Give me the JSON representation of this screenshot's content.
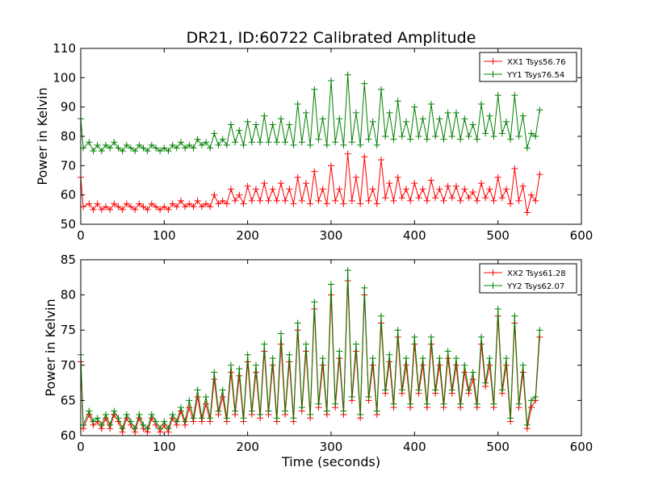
{
  "figure_title": "DR21, ID:60722 Calibrated Amplitude",
  "colors": {
    "xx": "#ff0000",
    "yy": "#008000",
    "axes": "#000000",
    "background": "#ffffff"
  },
  "chart_data": [
    {
      "type": "line",
      "title": "DR21, ID:60722 Calibrated Amplitude",
      "xlabel": "",
      "ylabel": "Power in Kelvin",
      "xlim": [
        0,
        600
      ],
      "ylim": [
        50,
        110
      ],
      "xticks": [
        "0",
        "100",
        "200",
        "300",
        "400",
        "500",
        "600"
      ],
      "yticks": [
        "50",
        "60",
        "70",
        "80",
        "90",
        "100",
        "110"
      ],
      "grid": false,
      "legend_position": "top-right",
      "marker": "+",
      "series": [
        {
          "name": "XX1 Tsys56.76",
          "color": "#ff0000",
          "x": [
            0,
            3,
            10,
            15,
            20,
            25,
            30,
            35,
            40,
            45,
            50,
            55,
            60,
            65,
            70,
            75,
            80,
            85,
            90,
            95,
            100,
            105,
            110,
            115,
            120,
            125,
            130,
            135,
            140,
            145,
            150,
            155,
            160,
            165,
            170,
            175,
            180,
            185,
            190,
            195,
            200,
            205,
            210,
            215,
            220,
            225,
            230,
            235,
            240,
            245,
            250,
            255,
            260,
            265,
            270,
            275,
            280,
            285,
            290,
            295,
            300,
            305,
            310,
            315,
            320,
            325,
            330,
            335,
            340,
            345,
            350,
            355,
            360,
            365,
            370,
            375,
            380,
            385,
            390,
            395,
            400,
            405,
            410,
            415,
            420,
            425,
            430,
            435,
            440,
            445,
            450,
            455,
            460,
            465,
            470,
            475,
            480,
            485,
            490,
            495,
            500,
            505,
            510,
            515,
            520,
            525,
            530,
            535,
            540,
            545,
            550
          ],
          "y": [
            66,
            56,
            57,
            55,
            57,
            55,
            56,
            55,
            57,
            56,
            55,
            57,
            56,
            55,
            57,
            56,
            55,
            57,
            56,
            55,
            56,
            55,
            57,
            56,
            58,
            56,
            57,
            56,
            58,
            56,
            57,
            56,
            60,
            57,
            58,
            57,
            62,
            58,
            60,
            57,
            63,
            58,
            62,
            58,
            64,
            58,
            62,
            58,
            64,
            58,
            62,
            57,
            66,
            58,
            64,
            57,
            68,
            58,
            62,
            57,
            70,
            58,
            62,
            57,
            74,
            58,
            66,
            57,
            73,
            58,
            62,
            57,
            72,
            59,
            64,
            58,
            66,
            59,
            62,
            58,
            64,
            59,
            62,
            58,
            65,
            59,
            62,
            58,
            63,
            59,
            63,
            58,
            62,
            59,
            61,
            58,
            64,
            59,
            62,
            58,
            66,
            59,
            62,
            57,
            69,
            58,
            63,
            54,
            60,
            58,
            67
          ]
        },
        {
          "name": "YY1 Tsys76.54",
          "color": "#008000",
          "x": [
            0,
            3,
            10,
            15,
            20,
            25,
            30,
            35,
            40,
            45,
            50,
            55,
            60,
            65,
            70,
            75,
            80,
            85,
            90,
            95,
            100,
            105,
            110,
            115,
            120,
            125,
            130,
            135,
            140,
            145,
            150,
            155,
            160,
            165,
            170,
            175,
            180,
            185,
            190,
            195,
            200,
            205,
            210,
            215,
            220,
            225,
            230,
            235,
            240,
            245,
            250,
            255,
            260,
            265,
            270,
            275,
            280,
            285,
            290,
            295,
            300,
            305,
            310,
            315,
            320,
            325,
            330,
            335,
            340,
            345,
            350,
            355,
            360,
            365,
            370,
            375,
            380,
            385,
            390,
            395,
            400,
            405,
            410,
            415,
            420,
            425,
            430,
            435,
            440,
            445,
            450,
            455,
            460,
            465,
            470,
            475,
            480,
            485,
            490,
            495,
            500,
            505,
            510,
            515,
            520,
            525,
            530,
            535,
            540,
            545,
            550
          ],
          "y": [
            86,
            76,
            78,
            75,
            77,
            75,
            77,
            76,
            78,
            76,
            75,
            77,
            76,
            75,
            77,
            76,
            75,
            77,
            76,
            75,
            76,
            75,
            77,
            76,
            78,
            76,
            77,
            76,
            79,
            77,
            78,
            76,
            81,
            77,
            79,
            77,
            84,
            78,
            82,
            77,
            85,
            78,
            84,
            78,
            87,
            78,
            84,
            78,
            86,
            78,
            84,
            77,
            91,
            78,
            88,
            77,
            96,
            79,
            86,
            77,
            99,
            78,
            86,
            77,
            101,
            78,
            88,
            77,
            98,
            79,
            85,
            77,
            96,
            80,
            88,
            79,
            92,
            80,
            85,
            79,
            90,
            80,
            86,
            79,
            91,
            80,
            86,
            79,
            88,
            80,
            88,
            79,
            86,
            80,
            84,
            79,
            91,
            81,
            87,
            80,
            94,
            81,
            85,
            79,
            94,
            80,
            87,
            76,
            81,
            80,
            89
          ]
        }
      ]
    },
    {
      "type": "line",
      "title": "",
      "xlabel": "Time (seconds)",
      "ylabel": "Power in Kelvin",
      "xlim": [
        0,
        600
      ],
      "ylim": [
        60,
        85
      ],
      "xticks": [
        "0",
        "100",
        "200",
        "300",
        "400",
        "500",
        "600"
      ],
      "yticks": [
        "60",
        "65",
        "70",
        "75",
        "80",
        "85"
      ],
      "grid": false,
      "legend_position": "top-right",
      "marker": "+",
      "series": [
        {
          "name": "XX2 Tsys61.28",
          "color": "#ff0000",
          "x": [
            0,
            3,
            10,
            15,
            20,
            25,
            30,
            35,
            40,
            45,
            50,
            55,
            60,
            65,
            70,
            75,
            80,
            85,
            90,
            95,
            100,
            105,
            110,
            115,
            120,
            125,
            130,
            135,
            140,
            145,
            150,
            155,
            160,
            165,
            170,
            175,
            180,
            185,
            190,
            195,
            200,
            205,
            210,
            215,
            220,
            225,
            230,
            235,
            240,
            245,
            250,
            255,
            260,
            265,
            270,
            275,
            280,
            285,
            290,
            295,
            300,
            305,
            310,
            315,
            320,
            325,
            330,
            335,
            340,
            345,
            350,
            355,
            360,
            365,
            370,
            375,
            380,
            385,
            390,
            395,
            400,
            405,
            410,
            415,
            420,
            425,
            430,
            435,
            440,
            445,
            450,
            455,
            460,
            465,
            470,
            475,
            480,
            485,
            490,
            495,
            500,
            505,
            510,
            515,
            520,
            525,
            530,
            535,
            540,
            545,
            550
          ],
          "y": [
            70.5,
            61,
            63,
            61.5,
            62,
            61,
            62.5,
            61,
            63,
            62,
            60.5,
            62.5,
            61.5,
            60.5,
            62.5,
            61,
            60.5,
            62.5,
            61.5,
            60.5,
            61.5,
            60.5,
            62.5,
            61.5,
            63.5,
            61.5,
            64,
            62,
            65.5,
            62,
            64.5,
            62,
            68,
            63,
            65.5,
            62,
            69,
            63,
            68.5,
            62,
            70.5,
            63,
            69,
            62.5,
            72,
            63,
            70,
            62,
            73,
            63,
            70.5,
            62,
            75,
            63.5,
            72,
            62.5,
            78,
            64,
            70,
            63,
            80,
            64,
            71,
            63,
            82,
            65,
            72,
            62.5,
            80,
            65,
            70,
            63,
            76,
            66,
            70.5,
            64,
            74,
            66,
            70,
            64,
            73,
            66,
            70,
            64,
            73,
            66,
            70,
            64,
            71,
            66,
            70,
            64,
            69,
            66,
            68,
            64,
            73,
            67,
            70,
            64,
            77,
            66,
            70,
            62,
            76,
            64,
            69,
            61,
            64,
            65,
            74
          ]
        },
        {
          "name": "YY2 Tsys62.07",
          "color": "#008000",
          "x": [
            0,
            3,
            10,
            15,
            20,
            25,
            30,
            35,
            40,
            45,
            50,
            55,
            60,
            65,
            70,
            75,
            80,
            85,
            90,
            95,
            100,
            105,
            110,
            115,
            120,
            125,
            130,
            135,
            140,
            145,
            150,
            155,
            160,
            165,
            170,
            175,
            180,
            185,
            190,
            195,
            200,
            205,
            210,
            215,
            220,
            225,
            230,
            235,
            240,
            245,
            250,
            255,
            260,
            265,
            270,
            275,
            280,
            285,
            290,
            295,
            300,
            305,
            310,
            315,
            320,
            325,
            330,
            335,
            340,
            345,
            350,
            355,
            360,
            365,
            370,
            375,
            380,
            385,
            390,
            395,
            400,
            405,
            410,
            415,
            420,
            425,
            430,
            435,
            440,
            445,
            450,
            455,
            460,
            465,
            470,
            475,
            480,
            485,
            490,
            495,
            500,
            505,
            510,
            515,
            520,
            525,
            530,
            535,
            540,
            545,
            550
          ],
          "y": [
            71.5,
            61.5,
            63.5,
            62,
            62.5,
            61.5,
            63,
            61.5,
            63.5,
            62.5,
            61,
            63,
            62,
            61,
            63,
            61.5,
            61,
            63,
            62,
            61,
            62,
            61,
            63,
            62,
            64,
            62,
            65,
            62.5,
            66.5,
            62.5,
            65.5,
            62.5,
            69,
            63.5,
            66.5,
            62.5,
            70,
            63.5,
            69.5,
            62.5,
            71.5,
            63.5,
            70,
            63,
            73,
            63.5,
            71,
            62.5,
            74.5,
            63.5,
            71.5,
            62.5,
            76,
            64,
            73,
            63,
            79,
            64.5,
            71,
            63.5,
            81.5,
            64.5,
            72,
            63.5,
            83.5,
            65.5,
            73,
            63,
            81,
            65.5,
            71,
            63.5,
            77,
            66.5,
            71.5,
            64.5,
            75,
            66.5,
            71,
            64.5,
            74,
            66.5,
            71,
            64.5,
            74,
            66.5,
            71,
            64.5,
            72,
            66.5,
            71,
            64.5,
            70,
            66.5,
            69,
            64.5,
            74,
            67.5,
            71,
            64.5,
            78,
            66.5,
            71,
            62.5,
            77,
            64.5,
            70,
            61.5,
            65,
            65.5,
            75
          ]
        }
      ]
    }
  ]
}
